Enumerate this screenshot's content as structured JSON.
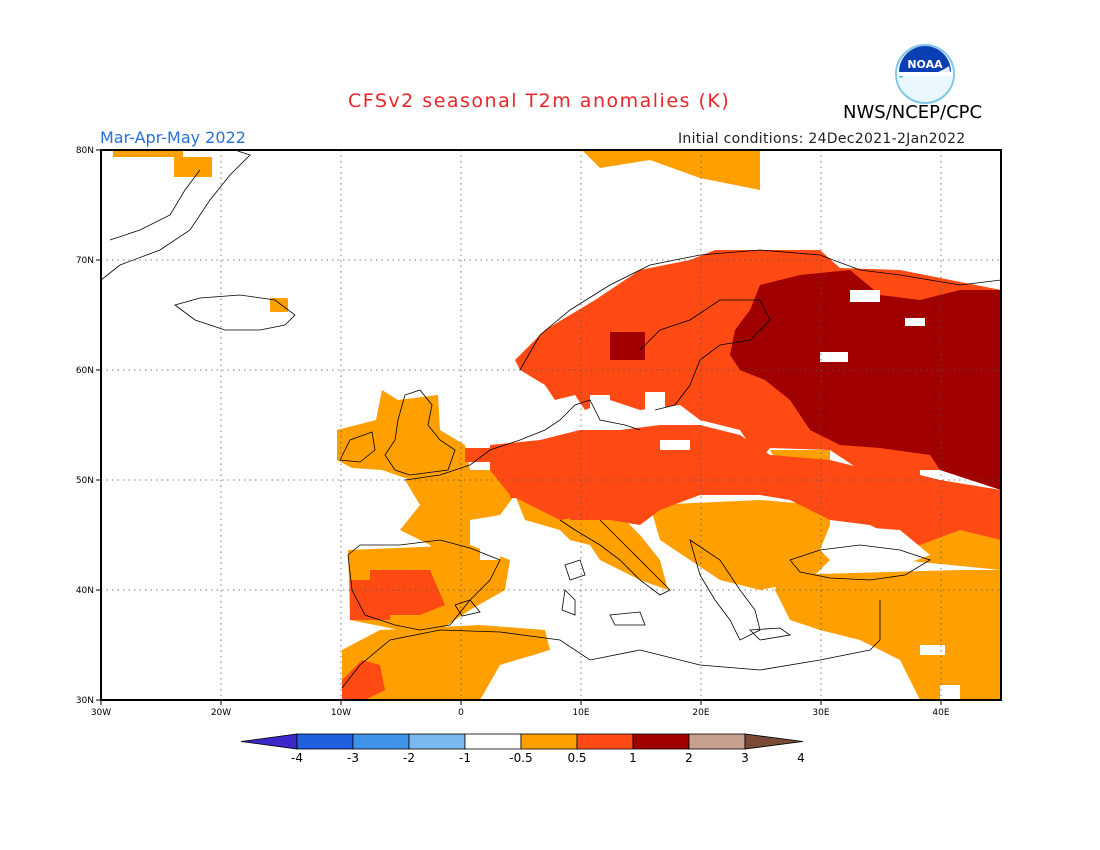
{
  "header": {
    "title": "CFSv2 seasonal T2m anomalies (K)",
    "period": "Mar-Apr-May 2022",
    "initial_conditions": "Initial conditions: 24Dec2021-2Jan2022",
    "agency": "NWS/NCEP/CPC",
    "logo_text": "NOAA"
  },
  "map": {
    "lon_ticks": [
      "30W",
      "20W",
      "10W",
      "0",
      "10E",
      "20E",
      "30E",
      "40E"
    ],
    "lat_ticks": [
      "80N",
      "70N",
      "60N",
      "50N",
      "40N",
      "30N"
    ],
    "lon_range": [
      -30,
      45
    ],
    "lat_range": [
      30,
      80
    ],
    "gridlines": "dotted"
  },
  "colorbar": {
    "labels": [
      "-4",
      "-3",
      "-2",
      "-1",
      "-0.5",
      "0.5",
      "1",
      "2",
      "3",
      "4"
    ],
    "colors": [
      "#3c28c8",
      "#1f5fe0",
      "#3f92ea",
      "#7ab8f0",
      "#ffffff",
      "#ffa000",
      "#ff4a14",
      "#a00000",
      "#c8a090",
      "#7a4a36"
    ]
  },
  "colors": {
    "anom_0_5_to_1": "#ffa000",
    "anom_1_to_2": "#ff4a14",
    "anom_2_to_3": "#a00000",
    "title": "#e8262a",
    "period": "#2a6ed8"
  }
}
